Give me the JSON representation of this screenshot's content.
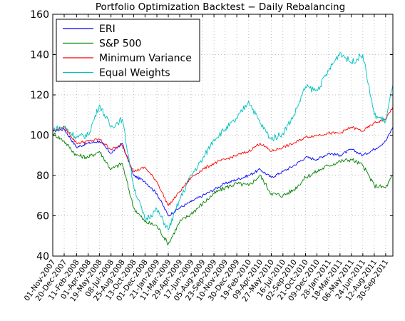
{
  "chart_data": {
    "type": "line",
    "title": "Portfolio Optimization Backtest − Daily Rebalancing",
    "xlabel": "",
    "ylabel": "",
    "ylim": [
      40,
      160
    ],
    "yticks": [
      40,
      60,
      80,
      100,
      120,
      140,
      160
    ],
    "grid": true,
    "legend_position": "top-left",
    "x_start": "01-Nov-2007",
    "x_end": "31-Oct-2011",
    "xticks": [
      "01-Nov-2007",
      "20-Dec-2007",
      "11-Feb-2008",
      "01-Apr-2008",
      "19-May-2008",
      "08-Jul-2008",
      "25-Aug-2008",
      "13-Oct-2008",
      "01-Dec-2008",
      "21-Jan-2009",
      "11-Mar-2009",
      "29-Apr-2009",
      "17-Jun-2009",
      "05-Aug-2009",
      "23-Sep-2009",
      "10-Nov-2009",
      "30-Dec-2009",
      "19-Feb-2010",
      "09-Apr-2010",
      "27-May-2010",
      "16-Jul-2010",
      "02-Sep-2010",
      "21-Oct-2010",
      "09-Dec-2010",
      "28-Jan-2011",
      "18-Mar-2011",
      "06-May-2011",
      "24-Jun-2011",
      "12-Aug-2011",
      "30-Sep-2011"
    ],
    "series": [
      {
        "name": "ERI",
        "color": "#0000ff",
        "points": [
          [
            "01-Nov-2007",
            102
          ],
          [
            "20-Dec-2007",
            103
          ],
          [
            "11-Feb-2008",
            94
          ],
          [
            "01-Apr-2008",
            96
          ],
          [
            "19-May-2008",
            97
          ],
          [
            "08-Jul-2008",
            91
          ],
          [
            "25-Aug-2008",
            96
          ],
          [
            "13-Oct-2008",
            80
          ],
          [
            "01-Dec-2008",
            77
          ],
          [
            "21-Jan-2009",
            71
          ],
          [
            "11-Mar-2009",
            60
          ],
          [
            "29-Apr-2009",
            64
          ],
          [
            "17-Jun-2009",
            67
          ],
          [
            "05-Aug-2009",
            70
          ],
          [
            "23-Sep-2009",
            73
          ],
          [
            "10-Nov-2009",
            76
          ],
          [
            "30-Dec-2009",
            78
          ],
          [
            "19-Feb-2010",
            80
          ],
          [
            "09-Apr-2010",
            83
          ],
          [
            "27-May-2010",
            79
          ],
          [
            "16-Jul-2010",
            82
          ],
          [
            "02-Sep-2010",
            85
          ],
          [
            "21-Oct-2010",
            89
          ],
          [
            "09-Dec-2010",
            88
          ],
          [
            "28-Jan-2011",
            91
          ],
          [
            "18-Mar-2011",
            90
          ],
          [
            "06-May-2011",
            93
          ],
          [
            "24-Jun-2011",
            90
          ],
          [
            "12-Aug-2011",
            93
          ],
          [
            "30-Sep-2011",
            97
          ],
          [
            "31-Oct-2011",
            104
          ]
        ]
      },
      {
        "name": "S&P 500",
        "color": "#008000",
        "points": [
          [
            "01-Nov-2007",
            101
          ],
          [
            "20-Dec-2007",
            97
          ],
          [
            "11-Feb-2008",
            90
          ],
          [
            "01-Apr-2008",
            89
          ],
          [
            "19-May-2008",
            92
          ],
          [
            "08-Jul-2008",
            83
          ],
          [
            "25-Aug-2008",
            86
          ],
          [
            "13-Oct-2008",
            64
          ],
          [
            "01-Dec-2008",
            57
          ],
          [
            "21-Jan-2009",
            55
          ],
          [
            "11-Mar-2009",
            46
          ],
          [
            "29-Apr-2009",
            57
          ],
          [
            "17-Jun-2009",
            61
          ],
          [
            "05-Aug-2009",
            66
          ],
          [
            "23-Sep-2009",
            71
          ],
          [
            "10-Nov-2009",
            74
          ],
          [
            "30-Dec-2009",
            76
          ],
          [
            "19-Feb-2010",
            75
          ],
          [
            "09-Apr-2010",
            80
          ],
          [
            "27-May-2010",
            71
          ],
          [
            "16-Jul-2010",
            70
          ],
          [
            "02-Sep-2010",
            73
          ],
          [
            "21-Oct-2010",
            79
          ],
          [
            "09-Dec-2010",
            82
          ],
          [
            "28-Jan-2011",
            85
          ],
          [
            "18-Mar-2011",
            87
          ],
          [
            "06-May-2011",
            88
          ],
          [
            "24-Jun-2011",
            85
          ],
          [
            "12-Aug-2011",
            75
          ],
          [
            "30-Sep-2011",
            74
          ],
          [
            "31-Oct-2011",
            80
          ]
        ]
      },
      {
        "name": "Minimum Variance",
        "color": "#ff0000",
        "points": [
          [
            "01-Nov-2007",
            102
          ],
          [
            "20-Dec-2007",
            104
          ],
          [
            "11-Feb-2008",
            96
          ],
          [
            "01-Apr-2008",
            97
          ],
          [
            "19-May-2008",
            98
          ],
          [
            "08-Jul-2008",
            93
          ],
          [
            "25-Aug-2008",
            95
          ],
          [
            "13-Oct-2008",
            82
          ],
          [
            "01-Dec-2008",
            84
          ],
          [
            "21-Jan-2009",
            77
          ],
          [
            "11-Mar-2009",
            65
          ],
          [
            "29-Apr-2009",
            72
          ],
          [
            "17-Jun-2009",
            79
          ],
          [
            "05-Aug-2009",
            83
          ],
          [
            "23-Sep-2009",
            86
          ],
          [
            "10-Nov-2009",
            88
          ],
          [
            "30-Dec-2009",
            90
          ],
          [
            "19-Feb-2010",
            92
          ],
          [
            "09-Apr-2010",
            96
          ],
          [
            "27-May-2010",
            92
          ],
          [
            "16-Jul-2010",
            94
          ],
          [
            "02-Sep-2010",
            96
          ],
          [
            "21-Oct-2010",
            99
          ],
          [
            "09-Dec-2010",
            100
          ],
          [
            "28-Jan-2011",
            101
          ],
          [
            "18-Mar-2011",
            101
          ],
          [
            "06-May-2011",
            104
          ],
          [
            "24-Jun-2011",
            102
          ],
          [
            "12-Aug-2011",
            106
          ],
          [
            "30-Sep-2011",
            108
          ],
          [
            "31-Oct-2011",
            114
          ]
        ]
      },
      {
        "name": "Equal Weights",
        "color": "#00bfbf",
        "points": [
          [
            "01-Nov-2007",
            103
          ],
          [
            "20-Dec-2007",
            104
          ],
          [
            "11-Feb-2008",
            99
          ],
          [
            "01-Apr-2008",
            100
          ],
          [
            "19-May-2008",
            115
          ],
          [
            "08-Jul-2008",
            104
          ],
          [
            "25-Aug-2008",
            108
          ],
          [
            "13-Oct-2008",
            75
          ],
          [
            "01-Dec-2008",
            58
          ],
          [
            "21-Jan-2009",
            63
          ],
          [
            "11-Mar-2009",
            53
          ],
          [
            "29-Apr-2009",
            68
          ],
          [
            "17-Jun-2009",
            80
          ],
          [
            "05-Aug-2009",
            88
          ],
          [
            "23-Sep-2009",
            98
          ],
          [
            "10-Nov-2009",
            103
          ],
          [
            "30-Dec-2009",
            108
          ],
          [
            "19-Feb-2010",
            117
          ],
          [
            "09-Apr-2010",
            106
          ],
          [
            "27-May-2010",
            98
          ],
          [
            "16-Jul-2010",
            101
          ],
          [
            "02-Sep-2010",
            110
          ],
          [
            "21-Oct-2010",
            124
          ],
          [
            "09-Dec-2010",
            122
          ],
          [
            "28-Jan-2011",
            132
          ],
          [
            "18-Mar-2011",
            141
          ],
          [
            "06-May-2011",
            136
          ],
          [
            "24-Jun-2011",
            140
          ],
          [
            "12-Aug-2011",
            110
          ],
          [
            "30-Sep-2011",
            107
          ],
          [
            "31-Oct-2011",
            125
          ]
        ]
      }
    ]
  }
}
